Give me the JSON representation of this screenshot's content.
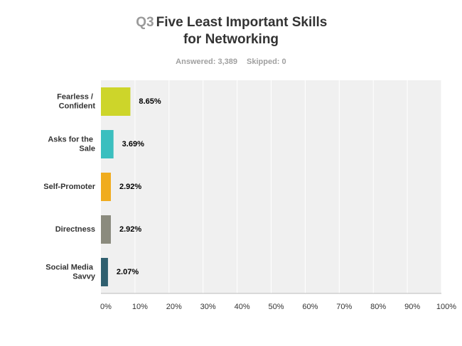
{
  "chart_data": {
    "type": "bar",
    "orientation": "horizontal",
    "title_number": "Q3",
    "title": "Five Least Important Skills for Networking",
    "answered": "Answered: 3,389",
    "skipped": "Skipped: 0",
    "categories": [
      "Fearless / Confident",
      "Asks for the Sale",
      "Self-Promoter",
      "Directness",
      "Social Media Savvy"
    ],
    "values": [
      8.65,
      3.69,
      2.92,
      2.92,
      2.07
    ],
    "value_labels": [
      "8.65%",
      "3.69%",
      "2.92%",
      "2.92%",
      "2.07%"
    ],
    "colors": [
      "#cdd52a",
      "#3bbfbf",
      "#f0ac1e",
      "#8b8b7e",
      "#2f5f6f"
    ],
    "xlim": [
      0,
      100
    ],
    "xticks": [
      {
        "value": 0,
        "label": "0%"
      },
      {
        "value": 10,
        "label": "10%"
      },
      {
        "value": 20,
        "label": "20%"
      },
      {
        "value": 30,
        "label": "30%"
      },
      {
        "value": 40,
        "label": "40%"
      },
      {
        "value": 50,
        "label": "50%"
      },
      {
        "value": 60,
        "label": "60%"
      },
      {
        "value": 70,
        "label": "70%"
      },
      {
        "value": 80,
        "label": "80%"
      },
      {
        "value": 90,
        "label": "90%"
      },
      {
        "value": 100,
        "label": "100%"
      }
    ],
    "grid": true
  }
}
